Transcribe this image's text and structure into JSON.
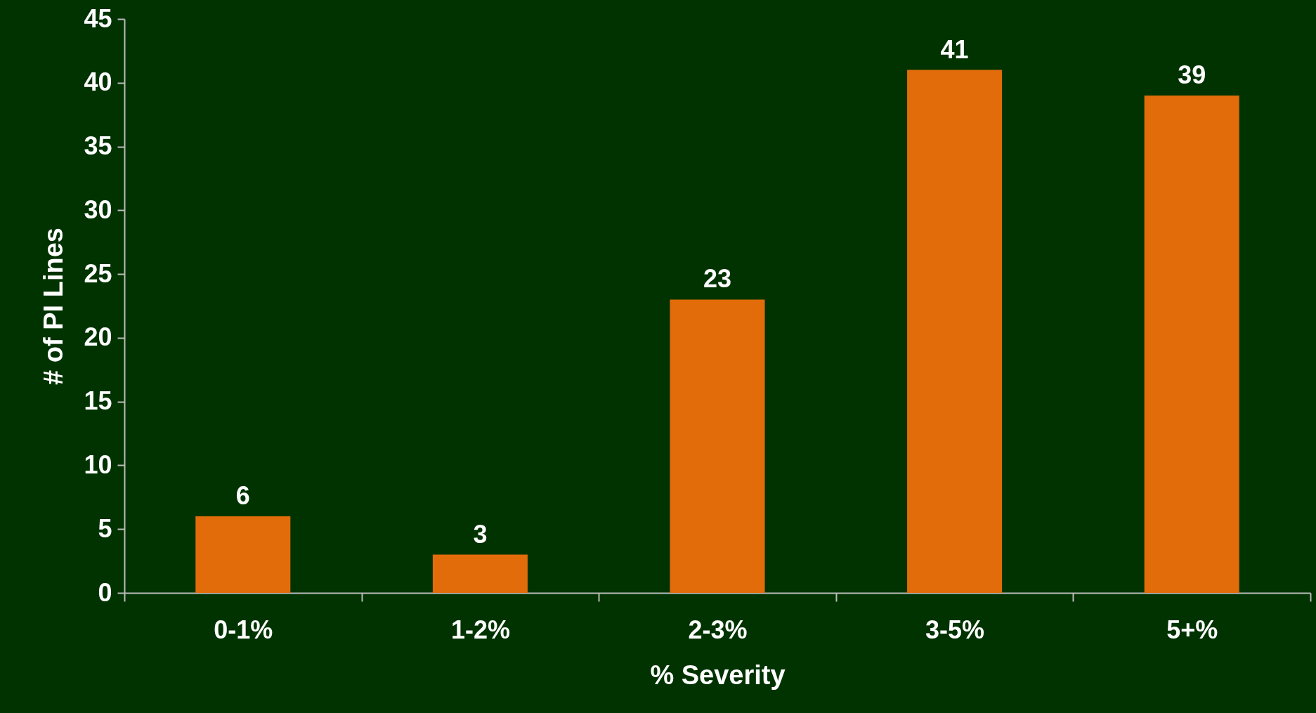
{
  "chart_data": {
    "type": "bar",
    "xlabel": "% Severity",
    "ylabel": "# of PI Lines",
    "categories": [
      "0-1%",
      "1-2%",
      "2-3%",
      "3-5%",
      "5+%"
    ],
    "values": [
      6,
      3,
      23,
      41,
      39
    ],
    "color": "#e36c0a",
    "ylim": [
      0,
      45
    ],
    "yticks": [
      0,
      5,
      10,
      15,
      20,
      25,
      30,
      35,
      40,
      45
    ],
    "data_labels": true,
    "grid": false
  }
}
